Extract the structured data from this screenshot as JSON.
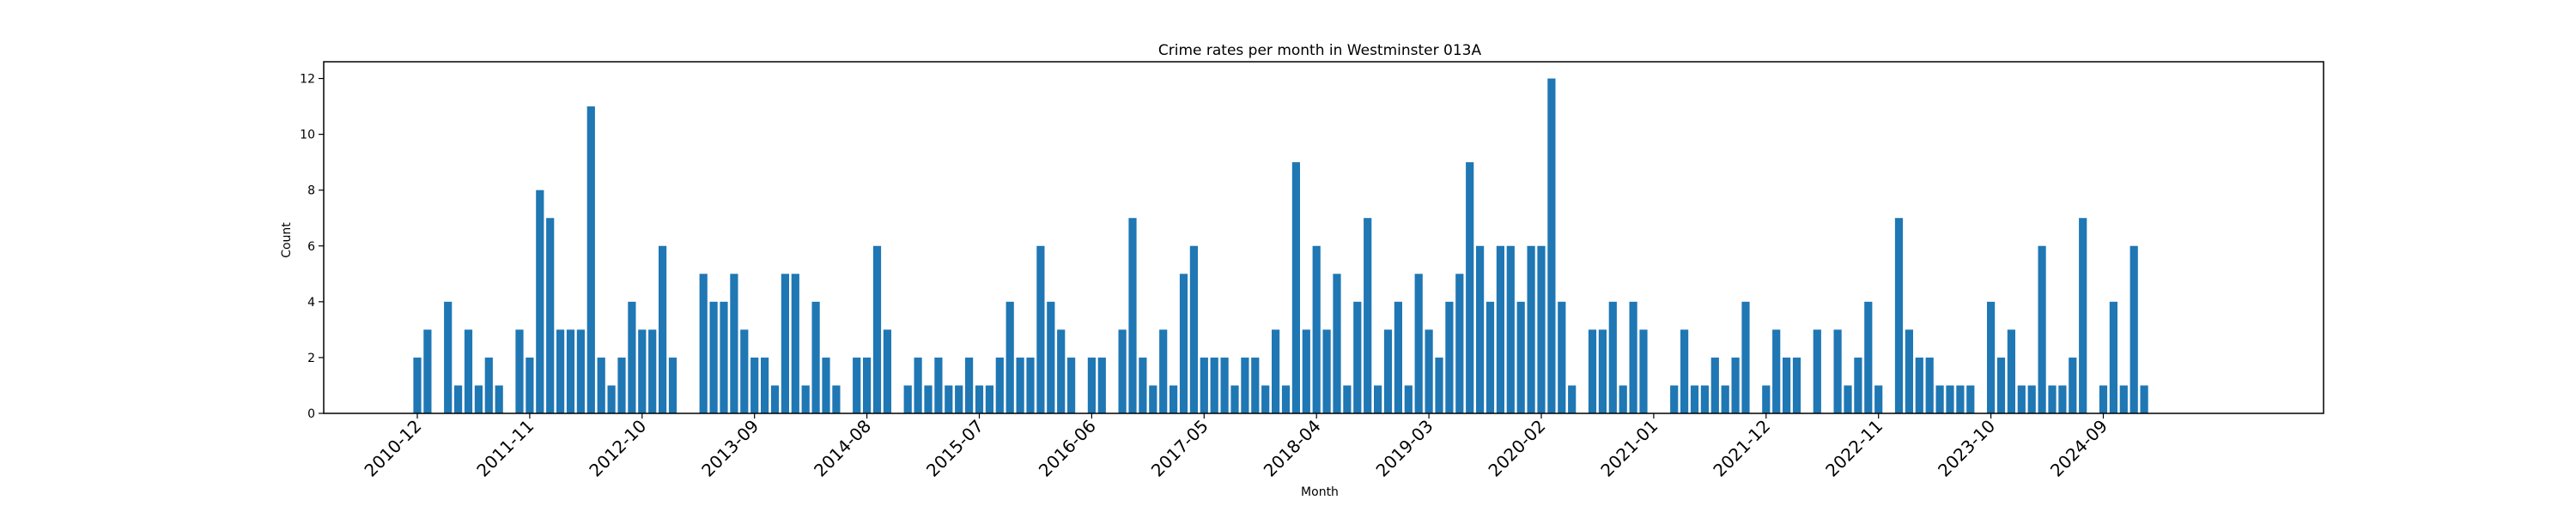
{
  "colors": {
    "bar": "#1f77b4",
    "axis": "#000000",
    "background": "#ffffff"
  },
  "chart_data": {
    "type": "bar",
    "title": "Crime rates per month in Westminster 013A",
    "xlabel": "Month",
    "ylabel": "Count",
    "ylim": [
      0,
      12.6
    ],
    "y_ticks": [
      0,
      2,
      4,
      6,
      8,
      10,
      12
    ],
    "x_tick_labels": [
      "2010-12",
      "2011-11",
      "2012-10",
      "2013-09",
      "2014-08",
      "2015-07",
      "2016-06",
      "2017-05",
      "2018-04",
      "2019-03",
      "2020-02",
      "2021-01",
      "2021-12",
      "2022-11",
      "2023-10",
      "2024-09"
    ],
    "grid": false,
    "legend": "none",
    "start_month": "2010-12",
    "values": [
      2,
      3,
      0,
      4,
      1,
      3,
      1,
      2,
      1,
      0,
      3,
      2,
      8,
      7,
      3,
      3,
      3,
      11,
      2,
      1,
      2,
      4,
      3,
      3,
      6,
      2,
      0,
      0,
      5,
      4,
      4,
      5,
      3,
      2,
      2,
      1,
      5,
      5,
      1,
      4,
      2,
      1,
      0,
      2,
      2,
      6,
      3,
      0,
      1,
      2,
      1,
      2,
      1,
      1,
      2,
      1,
      1,
      2,
      4,
      2,
      2,
      6,
      4,
      3,
      2,
      0,
      2,
      2,
      0,
      3,
      7,
      2,
      1,
      3,
      1,
      5,
      6,
      2,
      2,
      2,
      1,
      2,
      2,
      1,
      3,
      1,
      9,
      3,
      6,
      3,
      5,
      1,
      4,
      7,
      1,
      3,
      4,
      1,
      5,
      3,
      2,
      4,
      5,
      9,
      6,
      4,
      6,
      6,
      4,
      6,
      6,
      12,
      4,
      1,
      0,
      3,
      3,
      4,
      1,
      4,
      3,
      0,
      0,
      1,
      3,
      1,
      1,
      2,
      1,
      2,
      4,
      0,
      1,
      3,
      2,
      2,
      0,
      3,
      0,
      3,
      1,
      2,
      4,
      1,
      0,
      7,
      3,
      2,
      2,
      1,
      1,
      1,
      1,
      0,
      4,
      2,
      3,
      1,
      1,
      6,
      1,
      1,
      2,
      7,
      0,
      1,
      4,
      1,
      6,
      1
    ]
  }
}
